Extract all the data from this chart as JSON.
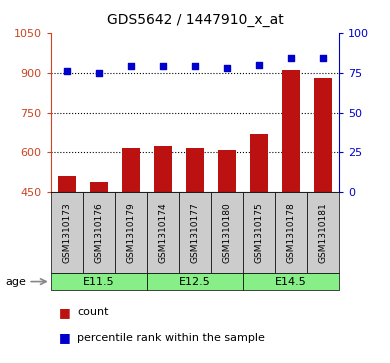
{
  "title": "GDS5642 / 1447910_x_at",
  "samples": [
    "GSM1310173",
    "GSM1310176",
    "GSM1310179",
    "GSM1310174",
    "GSM1310177",
    "GSM1310180",
    "GSM1310175",
    "GSM1310178",
    "GSM1310181"
  ],
  "counts": [
    510,
    490,
    618,
    625,
    615,
    608,
    668,
    910,
    880
  ],
  "percentile_ranks": [
    76,
    75,
    79,
    79,
    79,
    78,
    80,
    84,
    84
  ],
  "ylim_left": [
    450,
    1050
  ],
  "ylim_right": [
    0,
    100
  ],
  "yticks_left": [
    450,
    600,
    750,
    900,
    1050
  ],
  "yticks_right": [
    0,
    25,
    50,
    75,
    100
  ],
  "age_groups": [
    {
      "label": "E11.5",
      "start": 0,
      "end": 3
    },
    {
      "label": "E12.5",
      "start": 3,
      "end": 6
    },
    {
      "label": "E14.5",
      "start": 6,
      "end": 9
    }
  ],
  "bar_color": "#bb1111",
  "dot_color": "#0000cc",
  "bg_color_samples": "#cccccc",
  "age_color": "#88ee88",
  "left_tick_color": "#cc4422",
  "right_tick_color": "#0000cc",
  "legend_count_label": "count",
  "legend_pct_label": "percentile rank within the sample",
  "age_label": "age",
  "grid_lines": [
    600,
    750,
    900
  ]
}
